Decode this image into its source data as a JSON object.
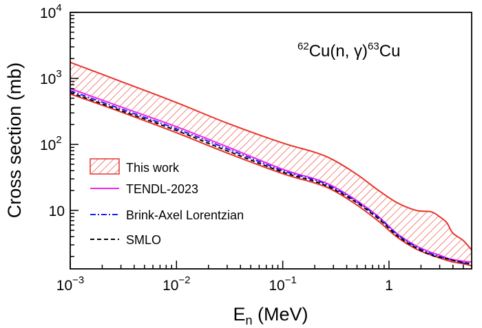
{
  "chart_data": {
    "type": "line",
    "title": "",
    "annotation": {
      "pre": "62",
      "main1": "Cu(n, ",
      "gamma": "γ",
      "main2": ")",
      "post": "63",
      "main3": "Cu"
    },
    "xlabel": {
      "main": "E",
      "sub": "n",
      "unit": " (MeV)"
    },
    "ylabel": "Cross section (mb)",
    "xscale": "log",
    "yscale": "log",
    "xlim": [
      0.001,
      6
    ],
    "ylim": [
      1.3,
      10000
    ],
    "xticks": [
      {
        "value": 0.001,
        "base": "10",
        "exp": "−3"
      },
      {
        "value": 0.01,
        "base": "10",
        "exp": "−2"
      },
      {
        "value": 0.1,
        "base": "10",
        "exp": "−1"
      },
      {
        "value": 1,
        "base": "1",
        "exp": ""
      }
    ],
    "yticks": [
      {
        "value": 10,
        "base": "10",
        "exp": ""
      },
      {
        "value": 100,
        "base": "10",
        "exp": "2"
      },
      {
        "value": 1000,
        "base": "10",
        "exp": "3"
      },
      {
        "value": 10000,
        "base": "10",
        "exp": "4"
      }
    ],
    "band": {
      "name": "This work",
      "color": "#e8332a",
      "x": [
        0.001,
        0.003,
        0.01,
        0.03,
        0.1,
        0.2,
        0.3,
        0.5,
        0.8,
        1.2,
        1.8,
        2.5,
        3.0,
        3.5,
        4.0,
        5.0,
        6.0
      ],
      "upper": [
        1750,
        900,
        430,
        210,
        105,
        76,
        58,
        35,
        20,
        13,
        10,
        9.5,
        8,
        6.5,
        4.5,
        3.5,
        2.5
      ],
      "lower": [
        580,
        310,
        150,
        74,
        36,
        26,
        20,
        12,
        6.8,
        3.9,
        2.6,
        2.1,
        1.9,
        1.75,
        1.65,
        1.55,
        1.45
      ]
    },
    "series": [
      {
        "name": "TENDL-2023",
        "color": "#ee22ee",
        "dash": "solid",
        "x": [
          0.001,
          0.003,
          0.01,
          0.03,
          0.1,
          0.2,
          0.3,
          0.5,
          0.8,
          1.2,
          1.8,
          2.5,
          3.0,
          3.5,
          4.0,
          5.0,
          6.0
        ],
        "values": [
          700,
          370,
          185,
          92,
          42,
          30,
          23,
          14,
          8,
          4.4,
          2.9,
          2.3,
          2.1,
          1.9,
          1.8,
          1.7,
          1.65
        ]
      },
      {
        "name": "Brink-Axel Lorentzian",
        "color": "#1a1aff",
        "dash": "dashdot",
        "x": [
          0.001,
          0.003,
          0.01,
          0.03,
          0.1,
          0.2,
          0.3,
          0.5,
          0.8,
          1.2,
          1.8,
          2.5,
          3.0,
          3.5,
          4.0,
          5.0,
          6.0
        ],
        "values": [
          650,
          345,
          172,
          86,
          40,
          29,
          22,
          13.5,
          7.8,
          4.3,
          2.8,
          2.2,
          2.0,
          1.85,
          1.75,
          1.6,
          1.5
        ]
      },
      {
        "name": "SMLO",
        "color": "#000000",
        "dash": "dashed",
        "x": [
          0.001,
          0.003,
          0.01,
          0.03,
          0.1,
          0.2,
          0.3,
          0.5,
          0.8,
          1.2,
          1.8,
          2.5,
          3.0,
          3.5,
          4.0,
          5.0,
          6.0
        ],
        "values": [
          610,
          325,
          162,
          80,
          38,
          27.5,
          21,
          13,
          7.4,
          4.1,
          2.7,
          2.1,
          1.95,
          1.85,
          1.75,
          1.62,
          1.55
        ]
      }
    ],
    "legend_position": "lower-left"
  }
}
